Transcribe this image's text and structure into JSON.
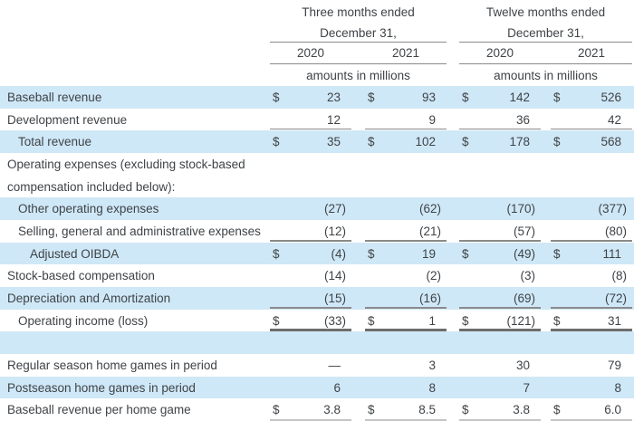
{
  "colors": {
    "shaded_row": "#cfe8f7",
    "text": "#3f4347",
    "rule": "#8a8a8a",
    "rule_thick": "#6d6d6d",
    "rule_edge": "#c5c5c5",
    "background": "#ffffff"
  },
  "table": {
    "header": {
      "groups": [
        {
          "period": "Three months ended",
          "date": "December 31,",
          "years": [
            "2020",
            "2021"
          ],
          "units": "amounts in millions"
        },
        {
          "period": "Twelve months ended",
          "date": "December 31,",
          "years": [
            "2020",
            "2021"
          ],
          "units": "amounts in millions"
        }
      ]
    },
    "rows": [
      {
        "label": "Baseball revenue",
        "indent": 0,
        "shaded": true,
        "cells": [
          {
            "d": "$",
            "v": "23"
          },
          {
            "d": "$",
            "v": "93"
          },
          {
            "d": "$",
            "v": "142"
          },
          {
            "d": "$",
            "v": "526"
          }
        ]
      },
      {
        "label": "Development revenue",
        "indent": 0,
        "shaded": false,
        "rule_below": "single",
        "cells": [
          {
            "v": "12"
          },
          {
            "v": "9"
          },
          {
            "v": "36"
          },
          {
            "v": "42"
          }
        ]
      },
      {
        "label": "Total revenue",
        "indent": 1,
        "shaded": true,
        "cells": [
          {
            "d": "$",
            "v": "35"
          },
          {
            "d": "$",
            "v": "102"
          },
          {
            "d": "$",
            "v": "178"
          },
          {
            "d": "$",
            "v": "568"
          }
        ]
      },
      {
        "label": "Operating expenses (excluding stock-based",
        "indent": 0,
        "shaded": false,
        "cells": []
      },
      {
        "label": "compensation included below):",
        "indent": 0,
        "shaded": false,
        "cells": []
      },
      {
        "label": "Other operating expenses",
        "indent": 1,
        "shaded": true,
        "cells": [
          {
            "v": "(27)"
          },
          {
            "v": "(62)"
          },
          {
            "v": "(170)"
          },
          {
            "v": "(377)"
          }
        ]
      },
      {
        "label": "Selling, general and administrative expenses",
        "indent": 1,
        "shaded": false,
        "rule_below": "single",
        "cells": [
          {
            "v": "(12)"
          },
          {
            "v": "(21)"
          },
          {
            "v": "(57)"
          },
          {
            "v": "(80)"
          }
        ]
      },
      {
        "label": "Adjusted OIBDA",
        "indent": 2,
        "shaded": true,
        "cells": [
          {
            "d": "$",
            "v": "(4)"
          },
          {
            "d": "$",
            "v": "19"
          },
          {
            "d": "$",
            "v": "(49)"
          },
          {
            "d": "$",
            "v": "111"
          }
        ]
      },
      {
        "label": "Stock-based compensation",
        "indent": 0,
        "shaded": false,
        "cells": [
          {
            "v": "(14)"
          },
          {
            "v": "(2)"
          },
          {
            "v": "(3)"
          },
          {
            "v": "(8)"
          }
        ]
      },
      {
        "label": "Depreciation and Amortization",
        "indent": 0,
        "shaded": true,
        "rule_below": "single",
        "cells": [
          {
            "v": "(15)"
          },
          {
            "v": "(16)"
          },
          {
            "v": "(69)"
          },
          {
            "v": "(72)"
          }
        ]
      },
      {
        "label": "Operating income (loss)",
        "indent": 1,
        "shaded": false,
        "rule_below": "thick",
        "cells": [
          {
            "d": "$",
            "v": "(33)"
          },
          {
            "d": "$",
            "v": "1"
          },
          {
            "d": "$",
            "v": "(121)"
          },
          {
            "d": "$",
            "v": "31"
          }
        ]
      },
      {
        "label": "",
        "indent": 0,
        "shaded": true,
        "cells": []
      },
      {
        "label": "Regular season home games in period",
        "indent": 0,
        "shaded": false,
        "cells": [
          {
            "v": "—"
          },
          {
            "v": "3"
          },
          {
            "v": "30"
          },
          {
            "v": "79"
          }
        ]
      },
      {
        "label": "Postseason home games in period",
        "indent": 0,
        "shaded": true,
        "cells": [
          {
            "v": "6"
          },
          {
            "v": "8"
          },
          {
            "v": "7"
          },
          {
            "v": "8"
          }
        ]
      },
      {
        "label": "Baseball revenue per home game",
        "indent": 0,
        "shaded": false,
        "rule_below": "edge",
        "cells": [
          {
            "d": "$",
            "v": "3.8"
          },
          {
            "d": "$",
            "v": "8.5"
          },
          {
            "d": "$",
            "v": "3.8"
          },
          {
            "d": "$",
            "v": "6.0"
          }
        ]
      }
    ]
  }
}
